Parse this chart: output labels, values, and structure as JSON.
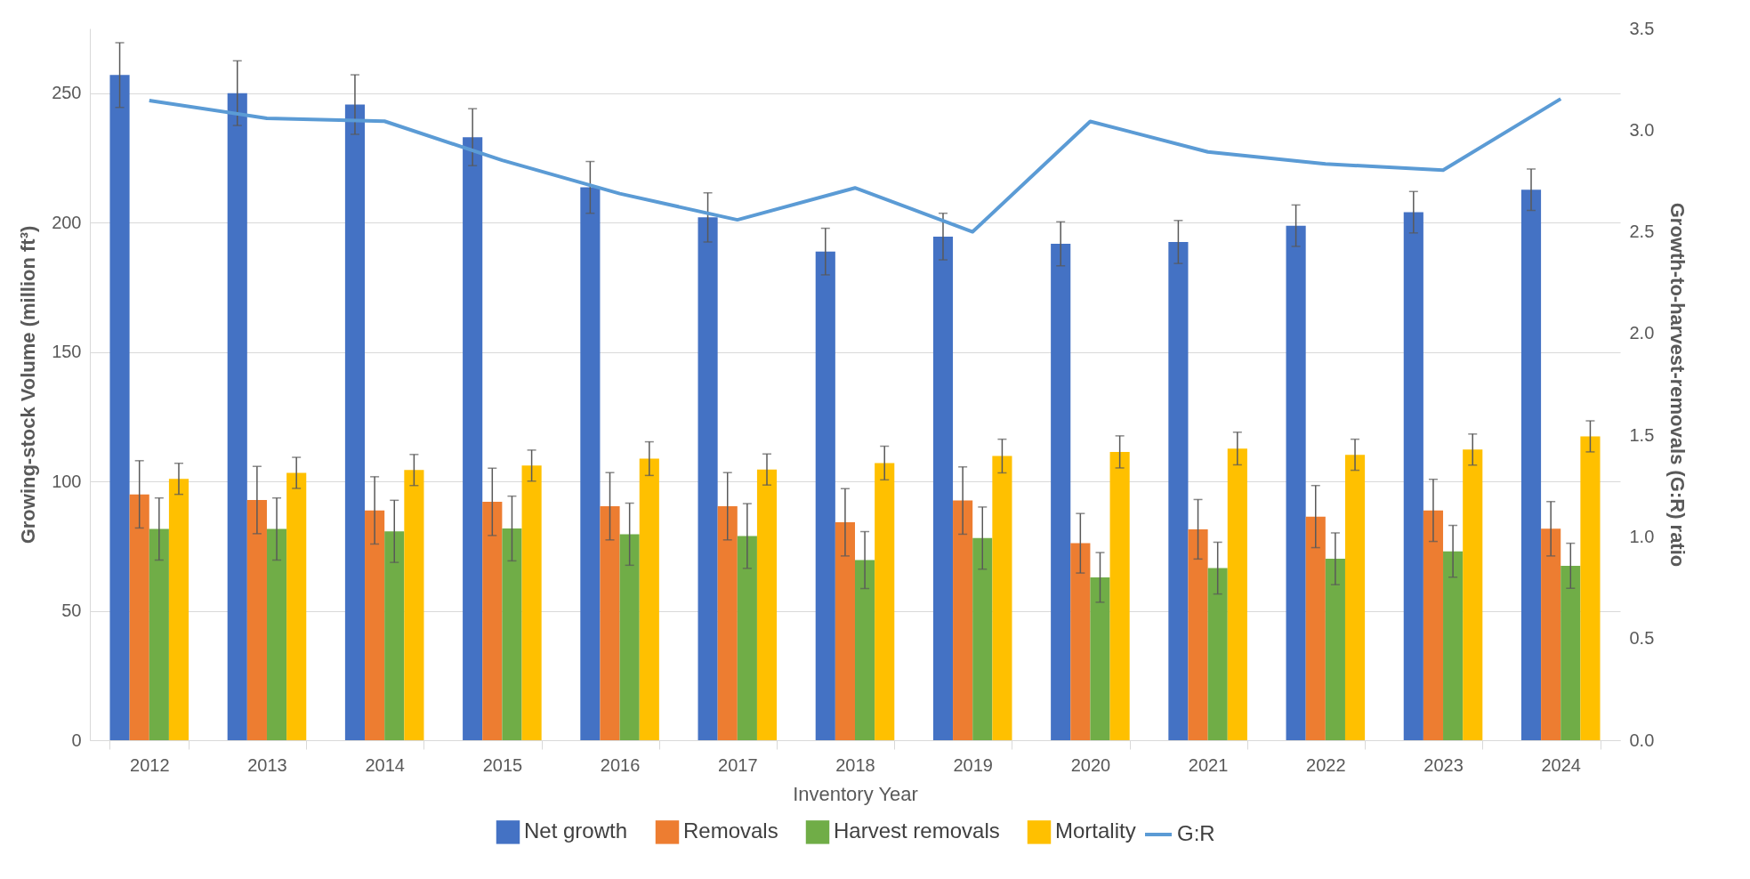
{
  "chart_data": {
    "type": "bar",
    "xlabel": "Inventory Year",
    "ylabel": "Growing-stock Volume (million ft³)",
    "y2label": "Growth-to-harvest-removals (G:R) ratio",
    "categories": [
      "2012",
      "2013",
      "2014",
      "2015",
      "2016",
      "2017",
      "2018",
      "2019",
      "2020",
      "2021",
      "2022",
      "2023",
      "2024"
    ],
    "series": [
      {
        "name": "Net growth",
        "color": "#4472c4",
        "values": [
          257,
          250,
          245.6,
          233,
          213.6,
          202,
          188.8,
          194.6,
          191.8,
          192.5,
          198.8,
          204,
          212.7
        ],
        "errors": [
          12.5,
          12.5,
          11.5,
          11,
          10,
          9.5,
          9,
          9,
          8.5,
          8.3,
          8,
          8,
          8
        ]
      },
      {
        "name": "Removals",
        "color": "#ed7d31",
        "values": [
          95,
          92.8,
          88.8,
          92.1,
          90.4,
          90.4,
          84.2,
          92.6,
          76.1,
          81.5,
          86.4,
          88.8,
          81.7
        ],
        "errors": [
          13,
          13,
          13,
          13,
          13,
          13,
          13,
          13,
          11.5,
          11.5,
          12,
          12,
          10.5
        ]
      },
      {
        "name": "Harvest removals",
        "color": "#70ad47",
        "values": [
          81.6,
          81.6,
          80.7,
          81.8,
          79.6,
          78.9,
          69.6,
          78.1,
          62.9,
          66.5,
          70.1,
          73,
          67.4
        ],
        "errors": [
          12,
          12,
          12,
          12.5,
          12,
          12.5,
          11,
          12,
          9.6,
          10,
          10,
          10,
          8.7
        ]
      },
      {
        "name": "Mortality",
        "color": "#ffc000",
        "values": [
          101,
          103.3,
          104.4,
          106.1,
          108.8,
          104.6,
          107.1,
          109.8,
          111.4,
          112.7,
          110.3,
          112.3,
          117.4
        ],
        "errors": [
          6,
          6,
          6,
          6,
          6.5,
          6,
          6.5,
          6.5,
          6.2,
          6.3,
          6,
          6,
          6
        ]
      },
      {
        "name": "G:R",
        "type": "line",
        "axis": "y2",
        "color": "#5b9bd5",
        "values": [
          3.146,
          3.058,
          3.044,
          2.852,
          2.688,
          2.559,
          2.716,
          2.5,
          3.043,
          2.893,
          2.834,
          2.803,
          3.154
        ]
      }
    ],
    "ylim": [
      0,
      275
    ],
    "yticks": [
      0,
      50,
      100,
      150,
      200,
      250
    ],
    "y2lim": [
      0,
      3.5
    ],
    "y2ticks": [
      {
        "value": 0,
        "label": "0.0"
      },
      {
        "value": 0.5,
        "label": "0.5"
      },
      {
        "value": 1,
        "label": "1.0"
      },
      {
        "value": 1.5,
        "label": "1.5"
      },
      {
        "value": 2,
        "label": "2.0"
      },
      {
        "value": 2.5,
        "label": "2.5"
      },
      {
        "value": 3,
        "label": "3.0"
      },
      {
        "value": 3.5,
        "label": "3.5"
      }
    ],
    "grid": "y",
    "legend": "bottom"
  }
}
